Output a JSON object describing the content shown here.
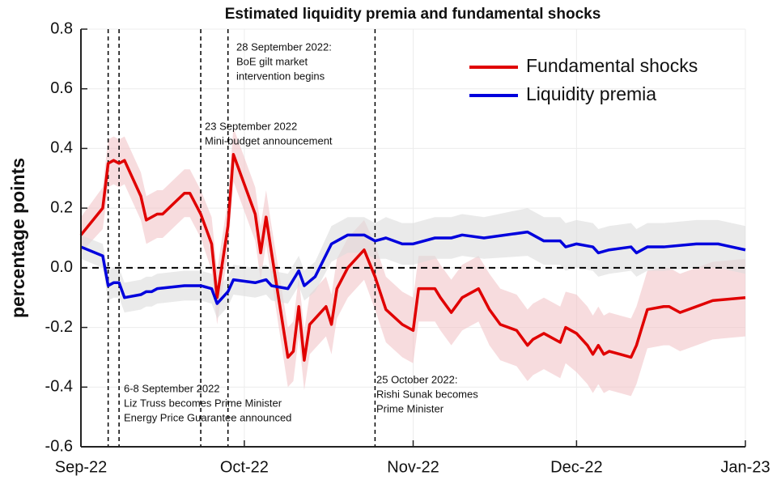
{
  "chart_data": {
    "type": "line",
    "title": "Estimated liquidity premia and fundamental shocks",
    "ylabel": "percentage points",
    "xlim": [
      0,
      122
    ],
    "xticks": [
      {
        "value": 0,
        "label": "Sep-22"
      },
      {
        "value": 30,
        "label": "Oct-22"
      },
      {
        "value": 61,
        "label": "Nov-22"
      },
      {
        "value": 91,
        "label": "Dec-22"
      },
      {
        "value": 122,
        "label": "Jan-23"
      }
    ],
    "ylim": [
      -0.6,
      0.8
    ],
    "yticks": [
      -0.6,
      -0.4,
      -0.2,
      {
        "value": 0,
        "label": "0.0"
      },
      0.2,
      0.4,
      0.6,
      0.8
    ],
    "grid": true,
    "legend": "upper right",
    "series": [
      {
        "name": "Fundamental shocks",
        "color": "#e00000",
        "x": [
          0,
          4,
          5,
          6,
          7,
          8,
          11,
          12,
          14,
          15,
          19,
          20,
          22,
          24,
          25,
          27,
          28,
          32,
          33,
          34,
          35,
          38,
          39,
          40,
          41,
          42,
          44,
          45,
          46,
          47,
          49,
          52,
          54,
          56,
          59,
          61,
          62,
          65,
          66,
          68,
          70,
          73,
          75,
          77,
          80,
          82,
          83,
          85,
          88,
          89,
          91,
          93,
          94,
          95,
          96,
          97,
          99,
          101,
          102,
          104,
          107,
          108,
          110,
          116,
          122
        ],
        "values": [
          0.11,
          0.2,
          0.35,
          0.36,
          0.35,
          0.36,
          0.24,
          0.16,
          0.18,
          0.18,
          0.25,
          0.25,
          0.18,
          0.08,
          -0.1,
          0.14,
          0.38,
          0.18,
          0.05,
          0.17,
          0.05,
          -0.3,
          -0.28,
          -0.13,
          -0.31,
          -0.19,
          -0.15,
          -0.13,
          -0.19,
          -0.07,
          0.0,
          0.06,
          -0.03,
          -0.14,
          -0.19,
          -0.21,
          -0.07,
          -0.07,
          -0.1,
          -0.15,
          -0.1,
          -0.07,
          -0.14,
          -0.19,
          -0.21,
          -0.26,
          -0.24,
          -0.22,
          -0.25,
          -0.2,
          -0.22,
          -0.26,
          -0.29,
          -0.26,
          -0.29,
          -0.28,
          -0.29,
          -0.3,
          -0.26,
          -0.14,
          -0.13,
          -0.13,
          -0.15,
          -0.11,
          -0.1
        ],
        "errors": [
          0.06,
          0.07,
          0.08,
          0.08,
          0.08,
          0.08,
          0.08,
          0.08,
          0.08,
          0.08,
          0.08,
          0.08,
          0.08,
          0.09,
          0.09,
          0.09,
          0.09,
          0.09,
          0.09,
          0.09,
          0.09,
          0.1,
          0.1,
          0.1,
          0.1,
          0.1,
          0.1,
          0.1,
          0.1,
          0.1,
          0.1,
          0.1,
          0.11,
          0.11,
          0.11,
          0.11,
          0.11,
          0.11,
          0.11,
          0.11,
          0.11,
          0.11,
          0.12,
          0.12,
          0.12,
          0.12,
          0.12,
          0.12,
          0.12,
          0.12,
          0.13,
          0.13,
          0.13,
          0.13,
          0.13,
          0.13,
          0.13,
          0.13,
          0.13,
          0.13,
          0.13,
          0.13,
          0.13,
          0.13,
          0.13
        ],
        "band_color": "#f2c4c8"
      },
      {
        "name": "Liquidity premia",
        "color": "#0000dd",
        "x": [
          0,
          4,
          5,
          6,
          7,
          8,
          11,
          12,
          13,
          14,
          19,
          22,
          24,
          25,
          27,
          28,
          32,
          34,
          35,
          38,
          40,
          41,
          43,
          46,
          47,
          49,
          52,
          54,
          56,
          59,
          61,
          65,
          68,
          70,
          74,
          82,
          83,
          85,
          88,
          89,
          91,
          94,
          95,
          97,
          101,
          102,
          104,
          107,
          113,
          117,
          122
        ],
        "values": [
          0.07,
          0.04,
          -0.06,
          -0.05,
          -0.05,
          -0.1,
          -0.09,
          -0.08,
          -0.08,
          -0.07,
          -0.06,
          -0.06,
          -0.07,
          -0.12,
          -0.08,
          -0.04,
          -0.05,
          -0.04,
          -0.06,
          -0.07,
          -0.01,
          -0.06,
          -0.03,
          0.08,
          0.09,
          0.11,
          0.11,
          0.09,
          0.1,
          0.08,
          0.08,
          0.1,
          0.1,
          0.11,
          0.1,
          0.12,
          0.11,
          0.09,
          0.09,
          0.07,
          0.08,
          0.07,
          0.05,
          0.06,
          0.07,
          0.05,
          0.07,
          0.07,
          0.08,
          0.08,
          0.06
        ],
        "errors": [
          0.04,
          0.04,
          0.05,
          0.05,
          0.05,
          0.05,
          0.05,
          0.05,
          0.05,
          0.05,
          0.05,
          0.05,
          0.05,
          0.05,
          0.05,
          0.05,
          0.05,
          0.05,
          0.05,
          0.05,
          0.05,
          0.05,
          0.05,
          0.06,
          0.06,
          0.06,
          0.06,
          0.06,
          0.07,
          0.07,
          0.07,
          0.07,
          0.07,
          0.07,
          0.07,
          0.08,
          0.08,
          0.08,
          0.08,
          0.08,
          0.08,
          0.08,
          0.08,
          0.08,
          0.08,
          0.08,
          0.08,
          0.08,
          0.08,
          0.08,
          0.08
        ],
        "band_color": "#dcdcdc"
      }
    ],
    "event_lines": [
      5,
      7,
      22,
      27,
      54
    ],
    "annotations": [
      {
        "lines": [
          "28 September 2022:",
          "BoE gilt market",
          "intervention begins"
        ]
      },
      {
        "lines": [
          "23 September 2022",
          "Mini-budget announcement"
        ]
      },
      {
        "lines": [
          "6-8 September 2022",
          "Liz Truss becomes Prime Minister",
          "Energy Price Guarantee announced"
        ]
      },
      {
        "lines": [
          "25 October 2022:",
          "Rishi Sunak becomes",
          "Prime Minister"
        ]
      }
    ]
  }
}
